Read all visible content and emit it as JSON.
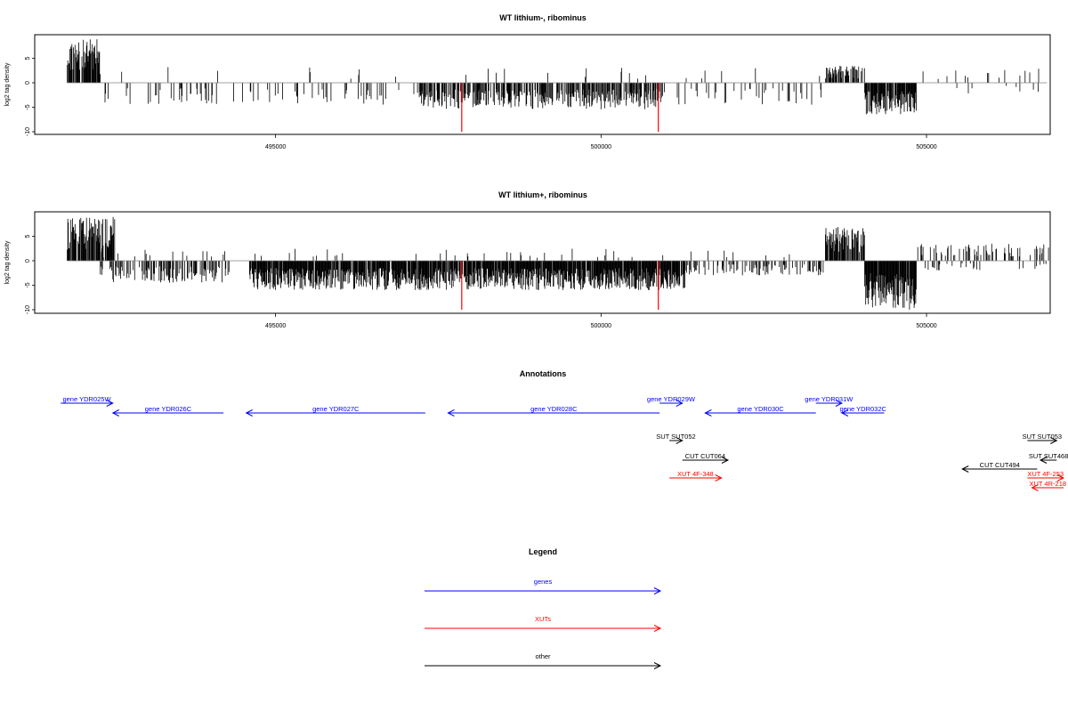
{
  "colors": {
    "genes": "#0000ff",
    "xuts": "#ff0000",
    "other": "#000000",
    "track": "#000000",
    "marker": "#ff0000",
    "baseline": "#808080"
  },
  "chart_data": [
    {
      "type": "bar",
      "title": "WT lithium-, ribominus",
      "ylabel": "log2 tag density",
      "xlim": [
        491300,
        506900
      ],
      "ylim": [
        -10,
        10
      ],
      "yticks": [
        "-10",
        "-5",
        "0",
        "5"
      ],
      "xticks": [
        "495000",
        "500000",
        "505000"
      ],
      "markers": [
        497860,
        500880
      ],
      "segments": [
        {
          "start": 491800,
          "end": 492300,
          "sign": 1,
          "max": 9.0,
          "fill": 0.8
        },
        {
          "start": 492300,
          "end": 503430,
          "sign": -1,
          "max": 4.5,
          "fill": 0.12
        },
        {
          "start": 497200,
          "end": 500950,
          "sign": -1,
          "max": 5.5,
          "fill": 0.55
        },
        {
          "start": 492300,
          "end": 503430,
          "sign": 1,
          "max": 3.2,
          "fill": 0.02
        },
        {
          "start": 503430,
          "end": 504050,
          "sign": 1,
          "max": 3.5,
          "fill": 0.5
        },
        {
          "start": 504050,
          "end": 504850,
          "sign": -1,
          "max": 6.5,
          "fill": 0.85
        },
        {
          "start": 504850,
          "end": 506900,
          "sign": 1,
          "max": 3.0,
          "fill": 0.08
        },
        {
          "start": 504850,
          "end": 506900,
          "sign": -1,
          "max": 2.5,
          "fill": 0.04
        }
      ]
    },
    {
      "type": "bar",
      "title": "WT lithium+, ribominus",
      "ylabel": "log2 tag density",
      "xlim": [
        491300,
        506900
      ],
      "ylim": [
        -10,
        10
      ],
      "yticks": [
        "-10",
        "-5",
        "0",
        "5"
      ],
      "xticks": [
        "495000",
        "500000",
        "505000"
      ],
      "markers": [
        497860,
        500880
      ],
      "segments": [
        {
          "start": 491800,
          "end": 492550,
          "sign": 1,
          "max": 9.0,
          "fill": 0.8
        },
        {
          "start": 492300,
          "end": 494300,
          "sign": -1,
          "max": 4.5,
          "fill": 0.45
        },
        {
          "start": 494600,
          "end": 501300,
          "sign": -1,
          "max": 6.0,
          "fill": 0.9
        },
        {
          "start": 501300,
          "end": 503430,
          "sign": -1,
          "max": 3.0,
          "fill": 0.3
        },
        {
          "start": 492300,
          "end": 503430,
          "sign": 1,
          "max": 2.5,
          "fill": 0.04
        },
        {
          "start": 503430,
          "end": 504050,
          "sign": 1,
          "max": 7.0,
          "fill": 0.75
        },
        {
          "start": 504050,
          "end": 504850,
          "sign": -1,
          "max": 10.0,
          "fill": 0.95
        },
        {
          "start": 504850,
          "end": 506900,
          "sign": 1,
          "max": 3.5,
          "fill": 0.2
        },
        {
          "start": 504850,
          "end": 506900,
          "sign": -1,
          "max": 2.0,
          "fill": 0.1
        }
      ]
    }
  ],
  "annotations": {
    "title": "Annotations",
    "items": [
      {
        "label": "gene YDR025W",
        "start": 491700,
        "end": 492500,
        "dir": "right",
        "type": "genes",
        "row": 0
      },
      {
        "label": "gene YDR026C",
        "start": 492500,
        "end": 494200,
        "dir": "left",
        "type": "genes",
        "row": 1
      },
      {
        "label": "gene YDR027C",
        "start": 494550,
        "end": 497300,
        "dir": "left",
        "type": "genes",
        "row": 1
      },
      {
        "label": "gene YDR028C",
        "start": 497650,
        "end": 500900,
        "dir": "left",
        "type": "genes",
        "row": 1
      },
      {
        "label": "gene YDR029W",
        "start": 500900,
        "end": 501250,
        "dir": "right",
        "type": "genes",
        "row": 0
      },
      {
        "label": "gene YDR030C",
        "start": 501600,
        "end": 503300,
        "dir": "left",
        "type": "genes",
        "row": 1
      },
      {
        "label": "gene YDR031W",
        "start": 503300,
        "end": 503700,
        "dir": "right",
        "type": "genes",
        "row": 0
      },
      {
        "label": "gene YDR032C",
        "start": 503700,
        "end": 504350,
        "dir": "left",
        "type": "genes",
        "row": 1
      },
      {
        "label": "SUT SUT052",
        "start": 501050,
        "end": 501250,
        "dir": "right",
        "type": "other",
        "row": 3
      },
      {
        "label": "CUT CUT064",
        "start": 501250,
        "end": 501950,
        "dir": "right",
        "type": "other",
        "row": 4
      },
      {
        "label": "XUT 4F-348",
        "start": 501050,
        "end": 501850,
        "dir": "right",
        "type": "xuts",
        "row": 6
      },
      {
        "label": "CUT CUT494",
        "start": 505550,
        "end": 506700,
        "dir": "left",
        "type": "other",
        "row": 5
      },
      {
        "label": "SUT SUT053",
        "start": 506550,
        "end": 507000,
        "dir": "right",
        "type": "other",
        "row": 3
      },
      {
        "label": "SUT SUT468",
        "start": 506750,
        "end": 507000,
        "dir": "left",
        "type": "other",
        "row": 4
      },
      {
        "label": "XUT 4F-253",
        "start": 506550,
        "end": 507400,
        "dir": "right",
        "type": "xuts",
        "row": 6
      },
      {
        "label": "XUT 4R-218",
        "start": 506620,
        "end": 507360,
        "dir": "left",
        "type": "xuts",
        "row": 7
      }
    ]
  },
  "legend": {
    "title": "Legend",
    "items": [
      {
        "label": "genes",
        "type": "genes"
      },
      {
        "label": "XUTs",
        "type": "xuts"
      },
      {
        "label": "other",
        "type": "other"
      }
    ]
  }
}
